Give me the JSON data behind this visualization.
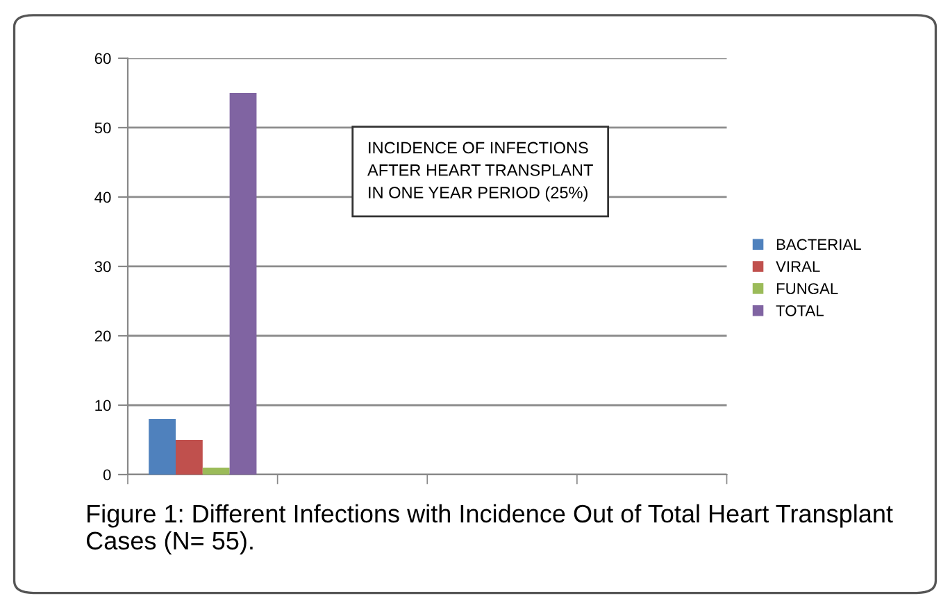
{
  "chart_data": {
    "type": "bar",
    "categories": [
      null,
      null,
      null,
      null
    ],
    "series": [
      {
        "name": "BACTERIAL",
        "color": "#4f81bd",
        "values": [
          8,
          null,
          null,
          null
        ]
      },
      {
        "name": "VIRAL",
        "color": "#c0504d",
        "values": [
          5,
          null,
          null,
          null
        ]
      },
      {
        "name": "FUNGAL",
        "color": "#9bbb59",
        "values": [
          1,
          null,
          null,
          null
        ]
      },
      {
        "name": "TOTAL",
        "color": "#8064a2",
        "values": [
          55,
          null,
          null,
          null
        ]
      }
    ],
    "ylim": [
      0,
      60
    ],
    "yticks": [
      0,
      10,
      20,
      30,
      40,
      50,
      60
    ],
    "grid": "y",
    "legend": "right",
    "annotations": [
      "INCIDENCE OF INFECTIONS\nAFTER HEART TRANSPLANT\nIN ONE YEAR PERIOD (25%)",
      "Figure 1: Different Infections with Incidence Out of Total Heart Transplant Cases (N= 55)."
    ]
  }
}
